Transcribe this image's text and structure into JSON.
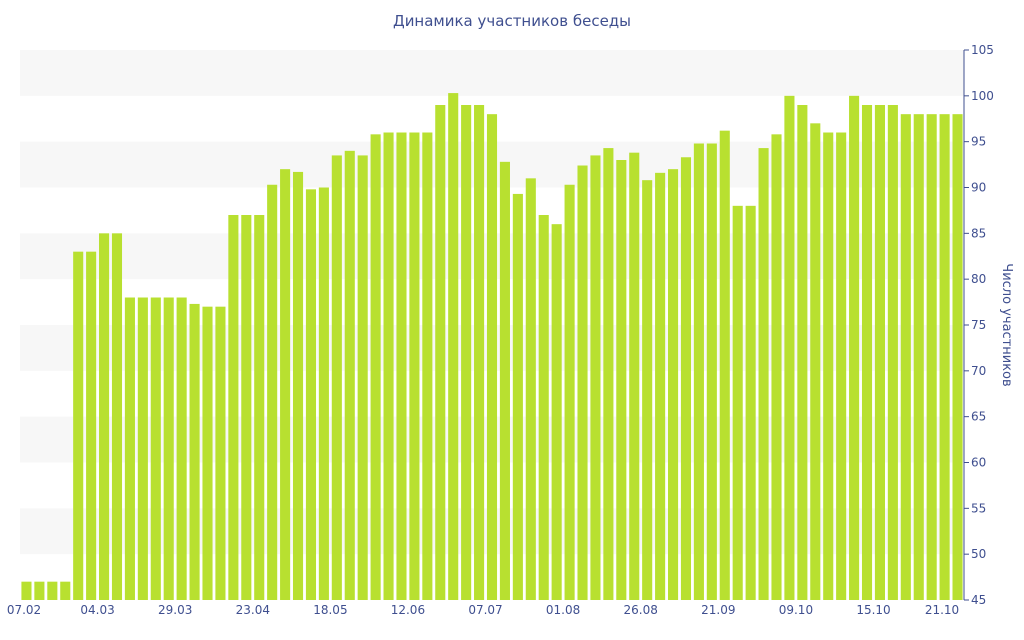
{
  "chart_data": {
    "type": "bar",
    "title": "Динамика участников беседы",
    "xlabel": "",
    "ylabel": "Число участников",
    "ylim": [
      45,
      105
    ],
    "y_ticks": [
      45,
      50,
      55,
      60,
      65,
      70,
      75,
      80,
      85,
      90,
      95,
      100,
      105
    ],
    "x_tick_labels": [
      "07.02",
      "04.03",
      "29.03",
      "23.04",
      "18.05",
      "12.06",
      "07.07",
      "01.08",
      "26.08",
      "21.09",
      "09.10",
      "15.10",
      "21.10"
    ],
    "x_tick_category_index": [
      0,
      6,
      12,
      18,
      24,
      30,
      36,
      42,
      48,
      54,
      60,
      66,
      72
    ],
    "grid": true,
    "colors": {
      "bar": "#b8e030",
      "band": "#f7f7f7",
      "axis": "#3f4f8f",
      "text": "#3f4f8f"
    },
    "values": [
      47,
      47,
      47,
      47,
      83,
      83,
      85,
      85,
      78,
      78,
      78,
      78,
      78,
      77.3,
      77,
      77,
      87,
      87,
      87,
      90.3,
      92,
      91.7,
      89.8,
      90,
      93.5,
      94,
      93.5,
      95.8,
      96,
      96,
      96,
      96,
      99,
      100.3,
      99,
      99,
      98,
      92.8,
      89.3,
      91,
      87,
      86,
      90.3,
      92.4,
      93.5,
      94.3,
      93,
      93.8,
      90.8,
      91.6,
      92,
      93.3,
      94.8,
      94.8,
      96.2,
      88,
      88,
      94.3,
      95.8,
      100,
      99,
      97,
      96,
      96,
      100,
      99,
      99,
      99,
      98,
      98,
      98,
      98,
      98
    ]
  }
}
